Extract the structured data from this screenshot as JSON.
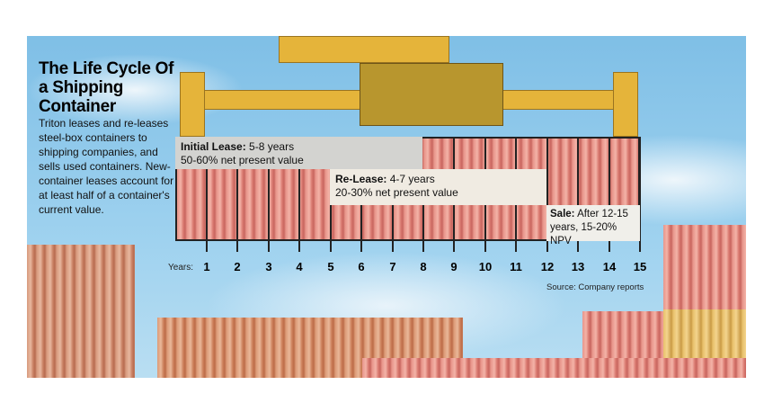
{
  "title": "The Life Cycle Of a Shipping Container",
  "description": "Triton leases and re-leases steel-box containers to shipping companies, and sells used containers. New-container leases account for at least half of a container's current value.",
  "phases": {
    "initial": {
      "label": "Initial Lease:",
      "detail": "5-8 years",
      "value": "50-60% net present value"
    },
    "release": {
      "label": "Re-Lease:",
      "detail": "4-7 years",
      "value": "20-30% net present value"
    },
    "sale": {
      "label": "Sale:",
      "detail": "After 12-15",
      "value": "years, 15-20% NPV"
    }
  },
  "axis_label": "Years:",
  "years": [
    "1",
    "2",
    "3",
    "4",
    "5",
    "6",
    "7",
    "8",
    "9",
    "10",
    "11",
    "12",
    "13",
    "14",
    "15"
  ],
  "source": "Source: Company reports",
  "colors": {
    "container": "#e8958a",
    "crane": "#e5b43a",
    "sky": "#8fc8ea"
  }
}
